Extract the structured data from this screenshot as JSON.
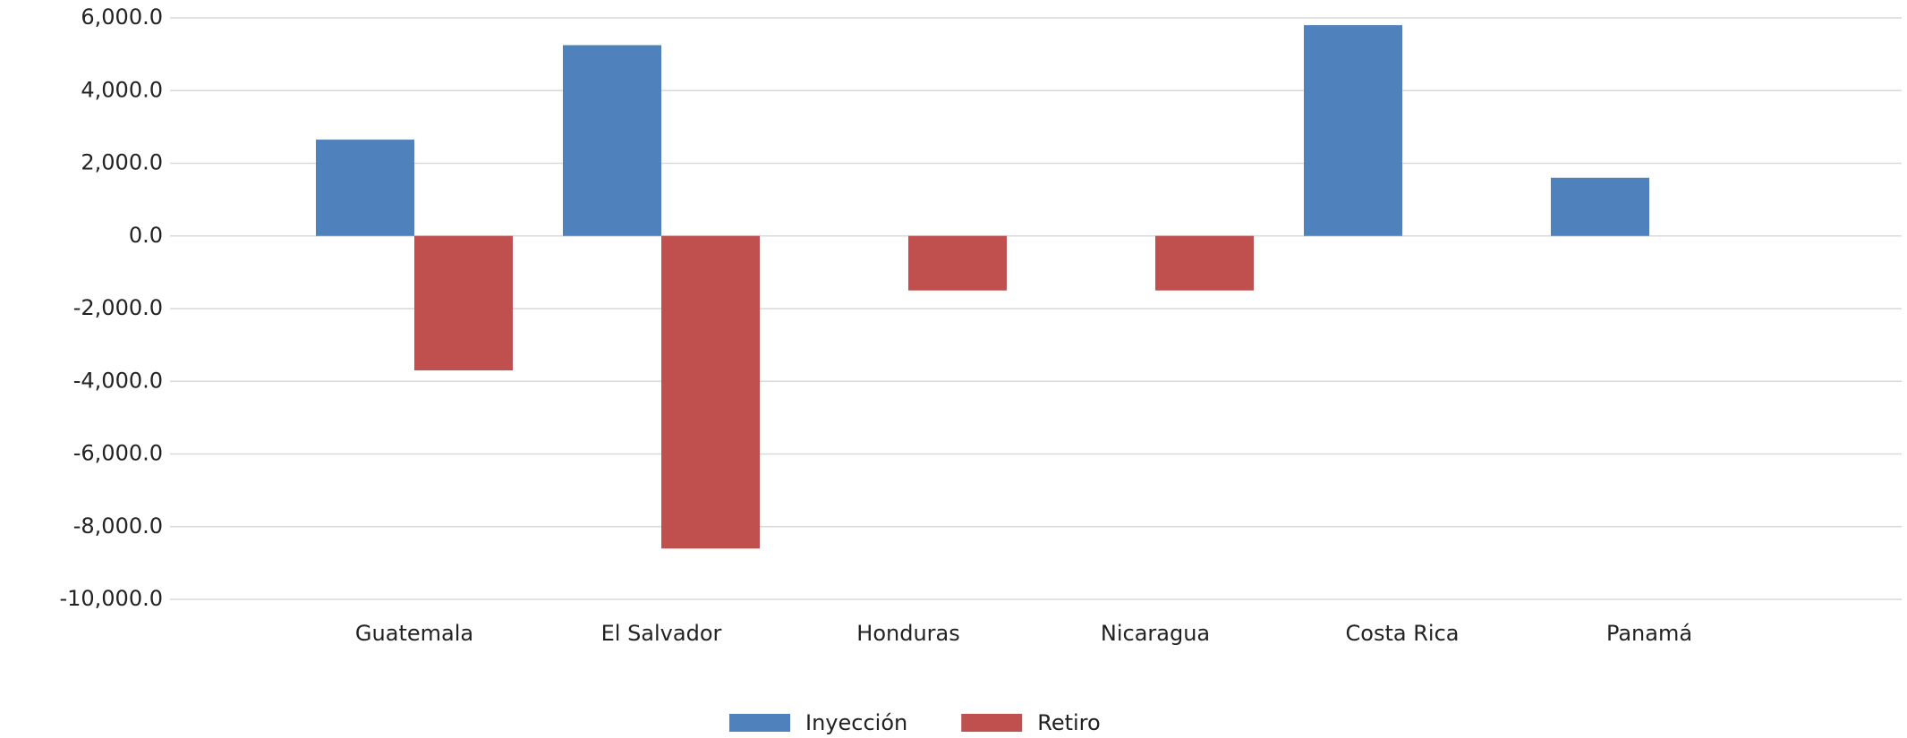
{
  "chart_data": {
    "type": "bar",
    "categories": [
      "Guatemala",
      "El Salvador",
      "Honduras",
      "Nicaragua",
      "Costa Rica",
      "Panamá"
    ],
    "series": [
      {
        "name": "Inyección",
        "color": "#4f81bd",
        "values": [
          2650,
          5250,
          null,
          null,
          5800,
          1600
        ]
      },
      {
        "name": "Retiro",
        "color": "#c0504d",
        "values": [
          -3700,
          -8600,
          -1500,
          -1500,
          null,
          null
        ]
      }
    ],
    "ylim": [
      -10000,
      6000
    ],
    "yticks": [
      {
        "value": -10000,
        "label": "-10,000.0"
      },
      {
        "value": -8000,
        "label": "-8,000.0"
      },
      {
        "value": -6000,
        "label": "-6,000.0"
      },
      {
        "value": -4000,
        "label": "-4,000.0"
      },
      {
        "value": -2000,
        "label": "-2,000.0"
      },
      {
        "value": 0,
        "label": "0.0"
      },
      {
        "value": 2000,
        "label": "2,000.0"
      },
      {
        "value": 4000,
        "label": "4,000.0"
      },
      {
        "value": 6000,
        "label": "6,000.0"
      }
    ],
    "grid": true,
    "legend": "bottom"
  }
}
